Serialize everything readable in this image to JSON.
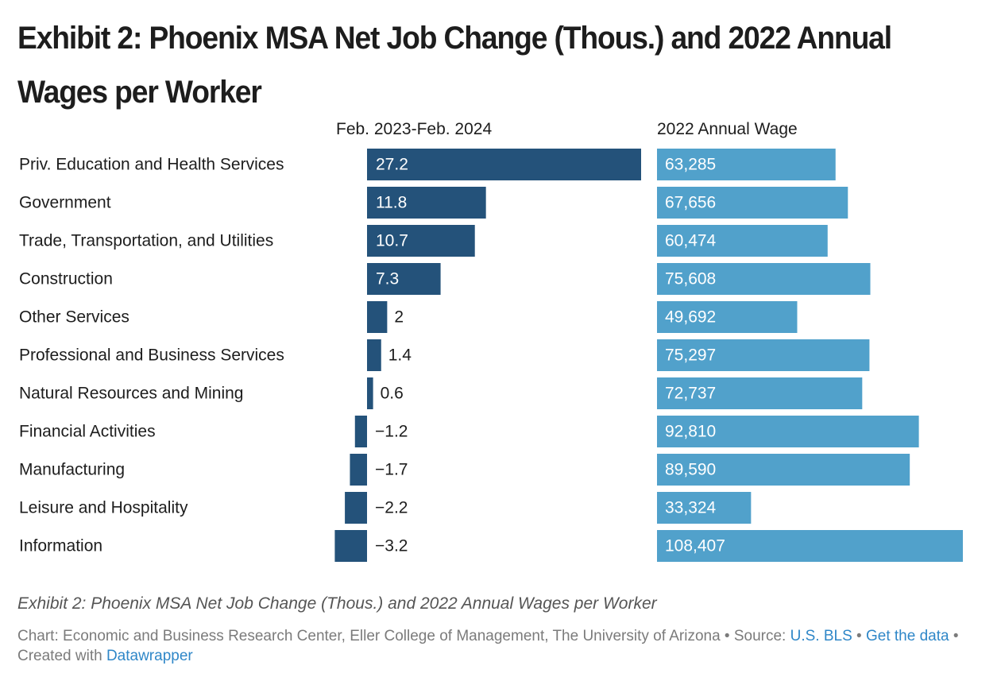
{
  "title": "Exhibit 2: Phoenix MSA Net Job Change (Thous.) and 2022 Annual Wages per Worker",
  "chart_data": {
    "type": "bar",
    "categories": [
      "Priv. Education and Health Services",
      "Government",
      "Trade, Transportation, and Utilities",
      "Construction",
      "Other Services",
      "Professional and Business Services",
      "Natural Resources and Mining",
      "Financial Activities",
      "Manufacturing",
      "Leisure and Hospitality",
      "Information"
    ],
    "series": [
      {
        "name": "Feb. 2023-Feb. 2024",
        "values": [
          27.2,
          11.8,
          10.7,
          7.3,
          2,
          1.4,
          0.6,
          -1.2,
          -1.7,
          -2.2,
          -3.2
        ],
        "labels": [
          "27.2",
          "11.8",
          "10.7",
          "7.3",
          "2",
          "1.4",
          "0.6",
          "−1.2",
          "−1.7",
          "−2.2",
          "−3.2"
        ],
        "color": "#24527a"
      },
      {
        "name": "2022 Annual Wage",
        "values": [
          63285,
          67656,
          60474,
          75608,
          49692,
          75297,
          72737,
          92810,
          89590,
          33324,
          108407
        ],
        "labels": [
          "63,285",
          "67,656",
          "60,474",
          "75,608",
          "49,692",
          "75,297",
          "72,737",
          "92,810",
          "89,590",
          "33,324",
          "108,407"
        ],
        "color": "#51a1cb"
      }
    ]
  },
  "notes": {
    "title": "Exhibit 2: Phoenix MSA Net Job Change (Thous.) and 2022 Annual Wages per Worker",
    "chart_prefix": "Chart: Economic and Business Research Center, Eller College of Management, The University of Arizona • Source: ",
    "source_link": "U.S. BLS",
    "sep1": " • ",
    "get_data": "Get the data",
    "sep2": " • Created with ",
    "created_with": "Datawrapper"
  }
}
